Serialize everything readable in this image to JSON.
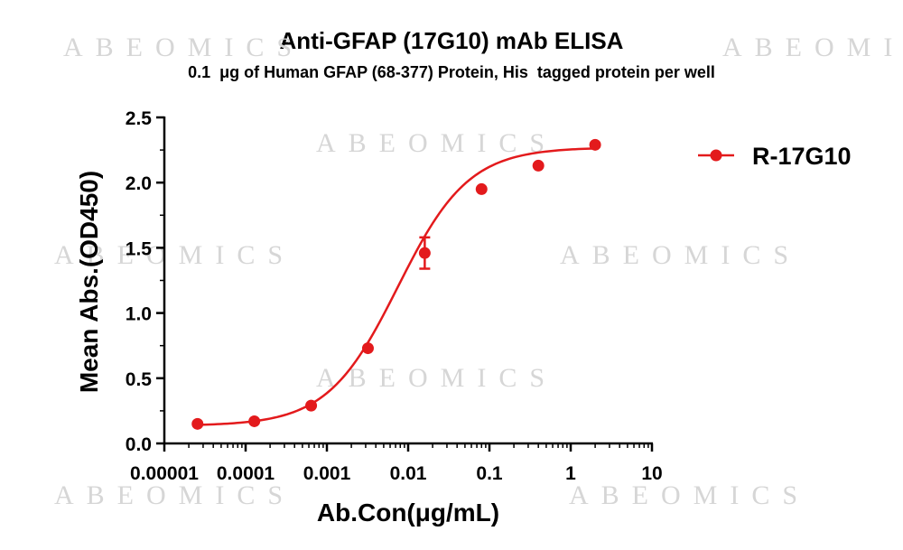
{
  "chart_data": {
    "type": "scatter",
    "title": "Anti-GFAP (17G10) mAb ELISA",
    "subtitle": "0.1  μg of Human GFAP (68-377) Protein, His  tagged protein per well",
    "xlabel": "Ab.Con(μg/mL)",
    "ylabel": "Mean Abs.(OD450)",
    "x_scale": "log",
    "xlim": [
      1e-05,
      10
    ],
    "ylim": [
      0,
      2.5
    ],
    "x_ticks": [
      "0.00001",
      "0.0001",
      "0.001",
      "0.01",
      "0.1",
      "1",
      "10"
    ],
    "y_ticks": [
      "0.0",
      "0.5",
      "1.0",
      "1.5",
      "2.0",
      "2.5"
    ],
    "grid": false,
    "legend_position": "top-right",
    "watermark": "ABEOMICS",
    "series": [
      {
        "name": "R-17G10",
        "color": "#e31a1c",
        "marker": "circle",
        "fit": "sigmoidal-4pl",
        "x": [
          2.56e-05,
          0.000128,
          0.00064,
          0.0032,
          0.016,
          0.08,
          0.4,
          2
        ],
        "y": [
          0.15,
          0.17,
          0.29,
          0.73,
          1.46,
          1.95,
          2.13,
          2.29
        ],
        "error": [
          0,
          0,
          0,
          0,
          0.12,
          0,
          0,
          0
        ]
      }
    ]
  }
}
